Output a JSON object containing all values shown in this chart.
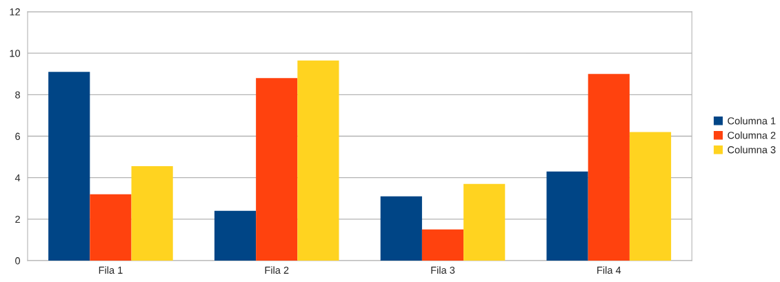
{
  "chart_data": {
    "type": "bar",
    "categories": [
      "Fila 1",
      "Fila 2",
      "Fila 3",
      "Fila 4"
    ],
    "series": [
      {
        "name": "Columna 1",
        "color": "#004586",
        "values": [
          9.1,
          2.4,
          3.1,
          4.3
        ]
      },
      {
        "name": "Columna 2",
        "color": "#ff420e",
        "values": [
          3.2,
          8.8,
          1.5,
          9.0
        ]
      },
      {
        "name": "Columna 3",
        "color": "#ffd320",
        "values": [
          4.55,
          9.65,
          3.7,
          6.2
        ]
      }
    ],
    "ylim": [
      0,
      12
    ],
    "yticks": [
      0,
      2,
      4,
      6,
      8,
      10,
      12
    ],
    "grid": "y",
    "legend": "right"
  }
}
